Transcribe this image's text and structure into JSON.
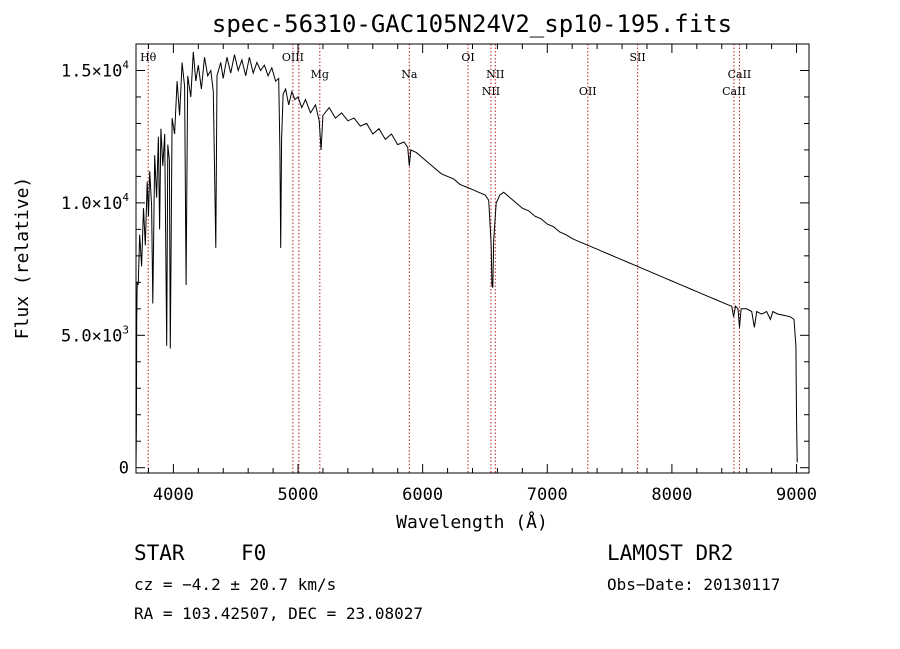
{
  "chart_data": {
    "type": "line",
    "title": "spec-56310-GAC105N24V2_sp10-195.fits",
    "xlabel": "Wavelength (Å)",
    "ylabel": "Flux (relative)",
    "xlim": [
      3700,
      9100
    ],
    "ylim": [
      -200,
      16000
    ],
    "x_ticks": [
      {
        "value": 4000,
        "label": "4000"
      },
      {
        "value": 5000,
        "label": "5000"
      },
      {
        "value": 6000,
        "label": "6000"
      },
      {
        "value": 7000,
        "label": "7000"
      },
      {
        "value": 8000,
        "label": "8000"
      },
      {
        "value": 9000,
        "label": "9000"
      }
    ],
    "y_ticks": [
      {
        "value": 0,
        "mantissa": "0",
        "exponent": ""
      },
      {
        "value": 5000,
        "mantissa": "5.0×10",
        "exponent": "3"
      },
      {
        "value": 10000,
        "mantissa": "1.0×10",
        "exponent": "4"
      },
      {
        "value": 15000,
        "mantissa": "1.5×10",
        "exponent": "4"
      }
    ],
    "spectrum": {
      "name": "flux",
      "color": "#000000",
      "points": [
        [
          3700,
          0
        ],
        [
          3703,
          1500
        ],
        [
          3706,
          5500
        ],
        [
          3710,
          7000
        ],
        [
          3718,
          6900
        ],
        [
          3730,
          8800
        ],
        [
          3745,
          7600
        ],
        [
          3760,
          9800
        ],
        [
          3775,
          8400
        ],
        [
          3790,
          10800
        ],
        [
          3800,
          9500
        ],
        [
          3810,
          11200
        ],
        [
          3825,
          9900
        ],
        [
          3835,
          6200
        ],
        [
          3850,
          11800
        ],
        [
          3865,
          10200
        ],
        [
          3880,
          12500
        ],
        [
          3889,
          9000
        ],
        [
          3900,
          12800
        ],
        [
          3915,
          11400
        ],
        [
          3930,
          12600
        ],
        [
          3946,
          4600
        ],
        [
          3955,
          12200
        ],
        [
          3968,
          11600
        ],
        [
          3975,
          4500
        ],
        [
          3990,
          13200
        ],
        [
          4010,
          12600
        ],
        [
          4030,
          14600
        ],
        [
          4050,
          13300
        ],
        [
          4070,
          15300
        ],
        [
          4090,
          14400
        ],
        [
          4102,
          6900
        ],
        [
          4115,
          14800
        ],
        [
          4140,
          14000
        ],
        [
          4160,
          15700
        ],
        [
          4180,
          14600
        ],
        [
          4200,
          15200
        ],
        [
          4225,
          14300
        ],
        [
          4250,
          15500
        ],
        [
          4275,
          14800
        ],
        [
          4300,
          15000
        ],
        [
          4320,
          14200
        ],
        [
          4340,
          8300
        ],
        [
          4350,
          14800
        ],
        [
          4380,
          15300
        ],
        [
          4400,
          14700
        ],
        [
          4430,
          15500
        ],
        [
          4460,
          14900
        ],
        [
          4490,
          15600
        ],
        [
          4520,
          15000
        ],
        [
          4550,
          15400
        ],
        [
          4580,
          14800
        ],
        [
          4610,
          15500
        ],
        [
          4640,
          14900
        ],
        [
          4670,
          15300
        ],
        [
          4700,
          15000
        ],
        [
          4730,
          15200
        ],
        [
          4760,
          14800
        ],
        [
          4790,
          15100
        ],
        [
          4820,
          14600
        ],
        [
          4845,
          14700
        ],
        [
          4855,
          12000
        ],
        [
          4861,
          8300
        ],
        [
          4868,
          12400
        ],
        [
          4880,
          14100
        ],
        [
          4900,
          14300
        ],
        [
          4925,
          13700
        ],
        [
          4950,
          14200
        ],
        [
          4975,
          13900
        ],
        [
          5000,
          14000
        ],
        [
          5030,
          13600
        ],
        [
          5060,
          13900
        ],
        [
          5100,
          13400
        ],
        [
          5140,
          13700
        ],
        [
          5170,
          13100
        ],
        [
          5185,
          12000
        ],
        [
          5200,
          13300
        ],
        [
          5250,
          13600
        ],
        [
          5300,
          13200
        ],
        [
          5350,
          13400
        ],
        [
          5400,
          13100
        ],
        [
          5450,
          13200
        ],
        [
          5500,
          12900
        ],
        [
          5550,
          13000
        ],
        [
          5600,
          12600
        ],
        [
          5650,
          12800
        ],
        [
          5700,
          12400
        ],
        [
          5750,
          12600
        ],
        [
          5800,
          12200
        ],
        [
          5850,
          12300
        ],
        [
          5880,
          12100
        ],
        [
          5893,
          11400
        ],
        [
          5905,
          12000
        ],
        [
          5950,
          11900
        ],
        [
          6000,
          11700
        ],
        [
          6050,
          11500
        ],
        [
          6100,
          11300
        ],
        [
          6150,
          11100
        ],
        [
          6200,
          11000
        ],
        [
          6250,
          10900
        ],
        [
          6300,
          10700
        ],
        [
          6350,
          10600
        ],
        [
          6400,
          10500
        ],
        [
          6450,
          10400
        ],
        [
          6500,
          10300
        ],
        [
          6530,
          10100
        ],
        [
          6550,
          8400
        ],
        [
          6556,
          6900
        ],
        [
          6563,
          6800
        ],
        [
          6570,
          8600
        ],
        [
          6590,
          10000
        ],
        [
          6620,
          10300
        ],
        [
          6650,
          10400
        ],
        [
          6700,
          10200
        ],
        [
          6750,
          10000
        ],
        [
          6800,
          9800
        ],
        [
          6850,
          9700
        ],
        [
          6900,
          9500
        ],
        [
          6950,
          9400
        ],
        [
          7000,
          9200
        ],
        [
          7050,
          9100
        ],
        [
          7100,
          8900
        ],
        [
          7150,
          8800
        ],
        [
          7200,
          8650
        ],
        [
          7250,
          8550
        ],
        [
          7300,
          8450
        ],
        [
          7350,
          8350
        ],
        [
          7400,
          8250
        ],
        [
          7450,
          8150
        ],
        [
          7500,
          8050
        ],
        [
          7550,
          7950
        ],
        [
          7600,
          7850
        ],
        [
          7650,
          7750
        ],
        [
          7700,
          7650
        ],
        [
          7750,
          7550
        ],
        [
          7800,
          7450
        ],
        [
          7850,
          7350
        ],
        [
          7900,
          7250
        ],
        [
          7950,
          7150
        ],
        [
          8000,
          7050
        ],
        [
          8050,
          6950
        ],
        [
          8100,
          6850
        ],
        [
          8150,
          6750
        ],
        [
          8200,
          6650
        ],
        [
          8250,
          6550
        ],
        [
          8300,
          6450
        ],
        [
          8350,
          6350
        ],
        [
          8400,
          6250
        ],
        [
          8450,
          6150
        ],
        [
          8480,
          6100
        ],
        [
          8495,
          5700
        ],
        [
          8510,
          6100
        ],
        [
          8530,
          6000
        ],
        [
          8542,
          5300
        ],
        [
          8555,
          6000
        ],
        [
          8600,
          6000
        ],
        [
          8640,
          5900
        ],
        [
          8662,
          5300
        ],
        [
          8680,
          5900
        ],
        [
          8720,
          5800
        ],
        [
          8760,
          5900
        ],
        [
          8790,
          5600
        ],
        [
          8810,
          5900
        ],
        [
          8850,
          5800
        ],
        [
          8900,
          5750
        ],
        [
          8950,
          5700
        ],
        [
          8980,
          5600
        ],
        [
          8995,
          4600
        ],
        [
          9000,
          2000
        ],
        [
          9005,
          200
        ]
      ]
    },
    "reference_lines": [
      {
        "name": "Hθ",
        "wavelength": 3798,
        "label_row": "top"
      },
      {
        "name": "OIII",
        "wavelength": 4959,
        "label_row": "top"
      },
      {
        "name": "OIII",
        "wavelength": 5007,
        "label_row": "none"
      },
      {
        "name": "Mg",
        "wavelength": 5175,
        "label_row": "mid"
      },
      {
        "name": "Na",
        "wavelength": 5893,
        "label_row": "mid"
      },
      {
        "name": "OI",
        "wavelength": 6364,
        "label_row": "top"
      },
      {
        "name": "NII",
        "wavelength": 6548,
        "label_row": "bottom"
      },
      {
        "name": "NII",
        "wavelength": 6583,
        "label_row": "mid"
      },
      {
        "name": "OII",
        "wavelength": 7325,
        "label_row": "bottom"
      },
      {
        "name": "SII",
        "wavelength": 7725,
        "label_row": "top"
      },
      {
        "name": "CaII",
        "wavelength": 8498,
        "label_row": "bottom"
      },
      {
        "name": "CaII",
        "wavelength": 8542,
        "label_row": "mid"
      }
    ],
    "reference_line_color": "#b22222"
  },
  "info": {
    "classification": "STAR",
    "subclass": "F0",
    "survey": "LAMOST DR2",
    "redshift": "cz = −4.2 ± 20.7 km/s",
    "obs_date": "Obs−Date: 20130117",
    "coordinates": "RA = 103.42507, DEC =  23.08027"
  }
}
